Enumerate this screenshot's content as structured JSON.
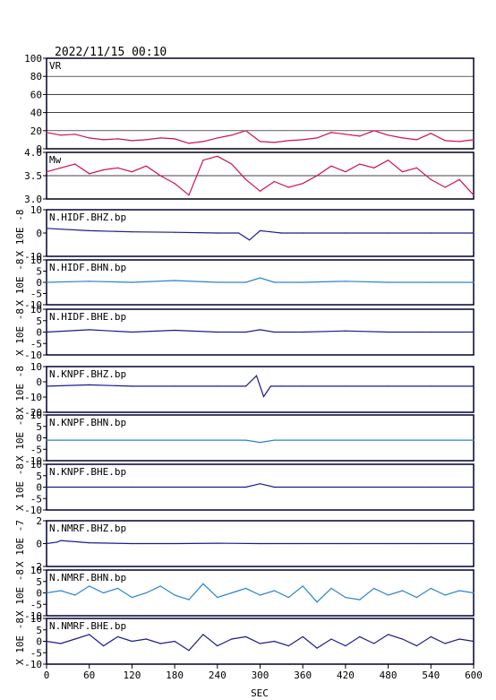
{
  "header": {
    "timestamp": "2022/11/15 00:10"
  },
  "colors": {
    "vr": "#d0104c",
    "mw": "#d0104c",
    "dark": "#1a1a90",
    "light": "#2a82d0",
    "frame": "#000033"
  },
  "x_axis": {
    "label": "SEC",
    "ticks": [
      "0",
      "60",
      "120",
      "180",
      "240",
      "300",
      "360",
      "420",
      "480",
      "540",
      "600"
    ]
  },
  "panels": [
    {
      "label": "VR",
      "ylabel": "",
      "yticks": [
        "100",
        "80",
        "60",
        "40",
        "20",
        "0"
      ],
      "series_color": "vr"
    },
    {
      "label": "Mw",
      "ylabel": "",
      "yticks": [
        "4.0",
        "3.5",
        "3.0"
      ],
      "series_color": "mw"
    },
    {
      "label": "N.HIDF.BHZ.bp",
      "ylabel": "X 10E -8",
      "yticks": [
        "10",
        "0",
        "-10"
      ],
      "series_color": "dark"
    },
    {
      "label": "N.HIDF.BHN.bp",
      "ylabel": "X 10E -8",
      "yticks": [
        "10",
        "5",
        "0",
        "-5",
        "-10"
      ],
      "series_color": "light"
    },
    {
      "label": "N.HIDF.BHE.bp",
      "ylabel": "X 10E -8",
      "yticks": [
        "10",
        "5",
        "0",
        "-5",
        "-10"
      ],
      "series_color": "dark"
    },
    {
      "label": "N.KNPF.BHZ.bp",
      "ylabel": "X 10E -8",
      "yticks": [
        "10",
        "0",
        "-10",
        "-20"
      ],
      "series_color": "dark"
    },
    {
      "label": "N.KNPF.BHN.bp",
      "ylabel": "X 10E -8",
      "yticks": [
        "10",
        "5",
        "0",
        "-5",
        "-10"
      ],
      "series_color": "light"
    },
    {
      "label": "N.KNPF.BHE.bp",
      "ylabel": "X 10E -8",
      "yticks": [
        "10",
        "5",
        "0",
        "-5",
        "-10"
      ],
      "series_color": "dark"
    },
    {
      "label": "N.NMRF.BHZ.bp",
      "ylabel": "X 10E -7",
      "yticks": [
        "2",
        "0",
        "-2"
      ],
      "series_color": "dark"
    },
    {
      "label": "N.NMRF.BHN.bp",
      "ylabel": "X 10E -8",
      "yticks": [
        "10",
        "5",
        "0",
        "-5",
        "-10"
      ],
      "series_color": "light"
    },
    {
      "label": "N.NMRF.BHE.bp",
      "ylabel": "X 10E -8",
      "yticks": [
        "10",
        "5",
        "0",
        "-5",
        "-10"
      ],
      "series_color": "dark"
    }
  ],
  "chart_data": {
    "type": "line",
    "xlabel": "SEC",
    "xlim": [
      0,
      600
    ],
    "panels": [
      {
        "name": "VR",
        "ylim": [
          0,
          100
        ],
        "grid": true,
        "x": [
          0,
          20,
          40,
          60,
          80,
          100,
          120,
          140,
          160,
          180,
          200,
          220,
          240,
          260,
          280,
          300,
          320,
          340,
          360,
          380,
          400,
          420,
          440,
          460,
          480,
          500,
          520,
          540,
          560,
          580,
          600
        ],
        "y": [
          18,
          15,
          16,
          12,
          10,
          11,
          9,
          10,
          12,
          11,
          6,
          8,
          12,
          15,
          20,
          8,
          7,
          9,
          10,
          12,
          18,
          16,
          14,
          20,
          15,
          12,
          10,
          17,
          9,
          8,
          10
        ]
      },
      {
        "name": "Mw",
        "ylim": [
          2.9,
          4.1
        ],
        "grid": true,
        "x": [
          0,
          20,
          40,
          60,
          80,
          100,
          120,
          140,
          160,
          180,
          200,
          220,
          240,
          260,
          280,
          300,
          320,
          340,
          360,
          380,
          400,
          420,
          440,
          460,
          480,
          500,
          520,
          540,
          560,
          580,
          600
        ],
        "y": [
          3.6,
          3.7,
          3.8,
          3.55,
          3.65,
          3.7,
          3.6,
          3.75,
          3.5,
          3.3,
          3.0,
          3.9,
          4.0,
          3.8,
          3.4,
          3.1,
          3.35,
          3.2,
          3.3,
          3.5,
          3.75,
          3.6,
          3.8,
          3.7,
          3.9,
          3.6,
          3.7,
          3.4,
          3.2,
          3.4,
          3.0
        ]
      },
      {
        "name": "N.HIDF.BHZ.bp",
        "ylim": [
          -10,
          10
        ],
        "x": [
          0,
          60,
          120,
          180,
          240,
          270,
          285,
          300,
          315,
          330,
          360,
          420,
          480,
          540,
          600
        ],
        "y": [
          2,
          1,
          0.5,
          0.3,
          0,
          0,
          -3,
          1,
          0.5,
          0,
          0,
          0,
          0,
          0,
          0
        ]
      },
      {
        "name": "N.HIDF.BHN.bp",
        "ylim": [
          -10,
          10
        ],
        "x": [
          0,
          60,
          120,
          180,
          240,
          280,
          300,
          320,
          360,
          420,
          480,
          540,
          600
        ],
        "y": [
          0,
          0.5,
          0,
          0.8,
          0,
          0,
          2,
          0,
          0,
          0.5,
          0,
          0,
          0
        ]
      },
      {
        "name": "N.HIDF.BHE.bp",
        "ylim": [
          -10,
          10
        ],
        "x": [
          0,
          60,
          120,
          180,
          240,
          280,
          300,
          320,
          360,
          420,
          480,
          540,
          600
        ],
        "y": [
          0,
          1,
          0,
          0.8,
          0,
          0,
          1,
          0,
          0,
          0.5,
          0,
          0,
          0
        ]
      },
      {
        "name": "N.KNPF.BHZ.bp",
        "ylim": [
          -20,
          15
        ],
        "x": [
          0,
          60,
          120,
          180,
          240,
          280,
          295,
          305,
          315,
          330,
          360,
          420,
          480,
          540,
          600
        ],
        "y": [
          0,
          1,
          0,
          0,
          0,
          0,
          8,
          -8,
          0,
          0,
          0,
          0,
          0,
          0,
          0
        ]
      },
      {
        "name": "N.KNPF.BHN.bp",
        "ylim": [
          -10,
          10
        ],
        "x": [
          0,
          60,
          120,
          180,
          240,
          280,
          300,
          320,
          360,
          420,
          480,
          540,
          600
        ],
        "y": [
          -1,
          -1,
          -1,
          -1,
          -1,
          -1,
          -2,
          -1,
          -1,
          -1,
          -1,
          -1,
          -1
        ]
      },
      {
        "name": "N.KNPF.BHE.bp",
        "ylim": [
          -10,
          10
        ],
        "x": [
          0,
          60,
          120,
          180,
          240,
          280,
          300,
          320,
          360,
          420,
          480,
          540,
          600
        ],
        "y": [
          0,
          0,
          0,
          0,
          0,
          0,
          1.5,
          0,
          0,
          0,
          0,
          0,
          0
        ]
      },
      {
        "name": "N.NMRF.BHZ.bp",
        "ylim": [
          -3,
          3
        ],
        "x": [
          0,
          15,
          20,
          60,
          120,
          180,
          240,
          300,
          360,
          420,
          480,
          540,
          600
        ],
        "y": [
          0,
          0.2,
          0.4,
          0.1,
          0,
          0,
          0.05,
          0,
          0,
          0,
          0,
          0,
          0
        ]
      },
      {
        "name": "N.NMRF.BHN.bp",
        "ylim": [
          -10,
          10
        ],
        "x": [
          0,
          20,
          40,
          60,
          80,
          100,
          120,
          140,
          160,
          180,
          200,
          220,
          240,
          260,
          280,
          300,
          320,
          340,
          360,
          380,
          400,
          420,
          440,
          460,
          480,
          500,
          520,
          540,
          560,
          580,
          600
        ],
        "y": [
          0,
          1,
          -1,
          3,
          0,
          2,
          -2,
          0,
          3,
          -1,
          -3,
          4,
          -2,
          0,
          2,
          -1,
          1,
          -2,
          3,
          -4,
          2,
          -2,
          -3,
          2,
          -1,
          1,
          -2,
          2,
          -1,
          1,
          0
        ]
      },
      {
        "name": "N.NMRF.BHE.bp",
        "ylim": [
          -10,
          10
        ],
        "x": [
          0,
          20,
          40,
          60,
          80,
          100,
          120,
          140,
          160,
          180,
          200,
          220,
          240,
          260,
          280,
          300,
          320,
          340,
          360,
          380,
          400,
          420,
          440,
          460,
          480,
          500,
          520,
          540,
          560,
          580,
          600
        ],
        "y": [
          0,
          -1,
          1,
          3,
          -2,
          2,
          0,
          1,
          -1,
          0,
          -4,
          3,
          -2,
          1,
          2,
          -1,
          0,
          -2,
          2,
          -3,
          1,
          -2,
          2,
          -1,
          3,
          1,
          -2,
          2,
          -1,
          1,
          0
        ]
      }
    ]
  }
}
